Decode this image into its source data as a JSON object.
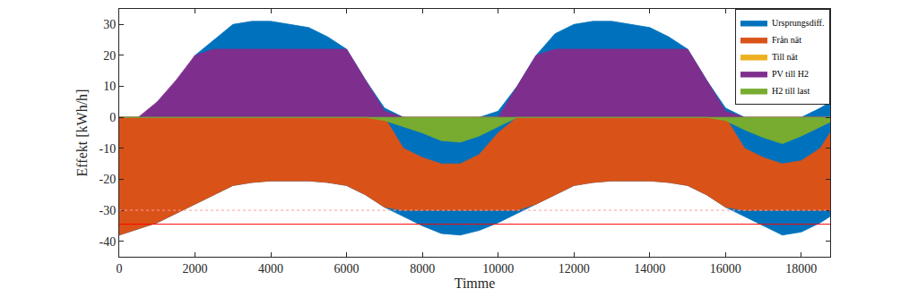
{
  "chart_data": {
    "type": "range_area",
    "x_label": "Timme",
    "y_label": "Effekt [kWh/h]",
    "x": [
      0,
      500,
      1000,
      1500,
      2000,
      2500,
      3000,
      3500,
      4000,
      4500,
      5000,
      5500,
      6000,
      6500,
      7000,
      7500,
      8000,
      8500,
      9000,
      9500,
      10000,
      10500,
      11000,
      11500,
      12000,
      12500,
      13000,
      13500,
      14000,
      14500,
      15000,
      15500,
      16000,
      16500,
      17000,
      17500,
      18000,
      18500,
      18760
    ],
    "series": [
      {
        "name": "Ursprungsdiff.",
        "color": "#0072bd",
        "min": [
          -38,
          -36,
          -34,
          -31,
          -28,
          -25,
          -22,
          -21,
          -20.5,
          -20.5,
          -20.5,
          -21,
          -22,
          -25,
          -29,
          -32,
          -35,
          -37.5,
          -38,
          -36.5,
          -34,
          -31,
          -28,
          -25,
          -22,
          -21,
          -20.5,
          -20.5,
          -20.5,
          -21,
          -22,
          -25,
          -29,
          -32,
          -35,
          -38,
          -37,
          -34,
          -32
        ],
        "max": [
          -2,
          0,
          3,
          10,
          20,
          25,
          30,
          31,
          31,
          30,
          29,
          26,
          22,
          12,
          3,
          0,
          -2,
          -5,
          -3,
          0,
          2,
          10,
          20,
          27,
          30,
          31,
          31,
          30,
          29,
          26,
          22,
          12,
          3,
          0,
          -2,
          -3,
          0,
          3,
          5
        ]
      },
      {
        "name": "Från nät",
        "color": "#d95319",
        "min": [
          -38,
          -36,
          -34,
          -31,
          -28,
          -25,
          -22,
          -21,
          -20.5,
          -20.5,
          -20.5,
          -21,
          -22,
          -25,
          -29,
          -30,
          -30,
          -30,
          -30,
          -30,
          -30,
          -30,
          -28,
          -25,
          -22,
          -21,
          -20.5,
          -20.5,
          -20.5,
          -21,
          -22,
          -25,
          -29,
          -30,
          -30,
          -30,
          -30,
          -30,
          -30
        ],
        "max": [
          0,
          0,
          0,
          0,
          0,
          0,
          0,
          0,
          0,
          0,
          0,
          0,
          0,
          0,
          0,
          -10,
          -13,
          -15,
          -15,
          -12,
          -5,
          0,
          0,
          0,
          0,
          0,
          0,
          0,
          0,
          0,
          0,
          0,
          0,
          -10,
          -13,
          -15,
          -14,
          -10,
          -5
        ]
      },
      {
        "name": "Till nät",
        "color": "#edb120",
        "min": [
          0,
          0,
          0,
          0,
          0,
          0,
          0,
          0,
          0,
          0,
          0,
          0,
          0,
          0,
          0,
          0,
          0,
          0,
          0,
          0,
          0,
          0,
          0,
          0,
          0,
          0,
          0,
          0,
          0,
          0,
          0,
          0,
          0,
          0,
          0,
          0,
          0,
          0,
          0
        ],
        "max": [
          0,
          0,
          0,
          0,
          0,
          0,
          0,
          0,
          0,
          0,
          0,
          0,
          0,
          0,
          0,
          0,
          0,
          0,
          0,
          0,
          0,
          0,
          0,
          0,
          0,
          0,
          0,
          0,
          0,
          0,
          0,
          0,
          0,
          0,
          0,
          0,
          0,
          0,
          0
        ]
      },
      {
        "name": "PV till H2",
        "color": "#7e2f8e",
        "min": [
          0,
          0,
          0,
          0,
          0,
          0,
          0,
          0,
          0,
          0,
          0,
          0,
          0,
          0,
          0,
          0,
          0,
          0,
          0,
          0,
          0,
          0,
          0,
          0,
          0,
          0,
          0,
          0,
          0,
          0,
          0,
          0,
          0,
          0,
          0,
          0,
          0,
          0,
          0
        ],
        "max": [
          0,
          0,
          5,
          12,
          20,
          22,
          22,
          22,
          22,
          22,
          22,
          22,
          22,
          12,
          2,
          0,
          0,
          0,
          0,
          0,
          0,
          10,
          20,
          22,
          22,
          22,
          22,
          22,
          22,
          22,
          22,
          12,
          2,
          0,
          0,
          0,
          0,
          0,
          0
        ]
      },
      {
        "name": "H2 till last",
        "color": "#77ac30",
        "min": [
          0,
          0,
          0,
          0,
          0,
          0,
          0,
          0,
          0,
          0,
          0,
          0,
          0,
          0,
          -1,
          -3,
          -5,
          -7.5,
          -8,
          -6,
          -3,
          0,
          0,
          0,
          0,
          0,
          0,
          0,
          0,
          0,
          0,
          0,
          -1,
          -4,
          -6.5,
          -8.5,
          -6,
          -3,
          -1.5
        ],
        "max": [
          0,
          0,
          0,
          0,
          0,
          0,
          0,
          0,
          0,
          0,
          0,
          0,
          0,
          0,
          0,
          0,
          0,
          0,
          0,
          0,
          0,
          0,
          0,
          0,
          0,
          0,
          0,
          0,
          0,
          0,
          0,
          0,
          0,
          0,
          0,
          0,
          0,
          0,
          0
        ]
      }
    ],
    "reference_lines": [
      {
        "value": -34.5,
        "color": "#ff0000",
        "line_style": "solid"
      },
      {
        "value": -30,
        "color": "#ff9999",
        "line_style": "dotted"
      }
    ],
    "xlim": [
      0,
      18760
    ],
    "xticks": [
      0,
      2000,
      4000,
      6000,
      8000,
      10000,
      12000,
      14000,
      16000,
      18000
    ],
    "ylim": [
      -45,
      35
    ],
    "yticks": [
      -40,
      -30,
      -20,
      -10,
      0,
      10,
      20,
      30
    ],
    "grid": false,
    "legend": "upper right"
  }
}
